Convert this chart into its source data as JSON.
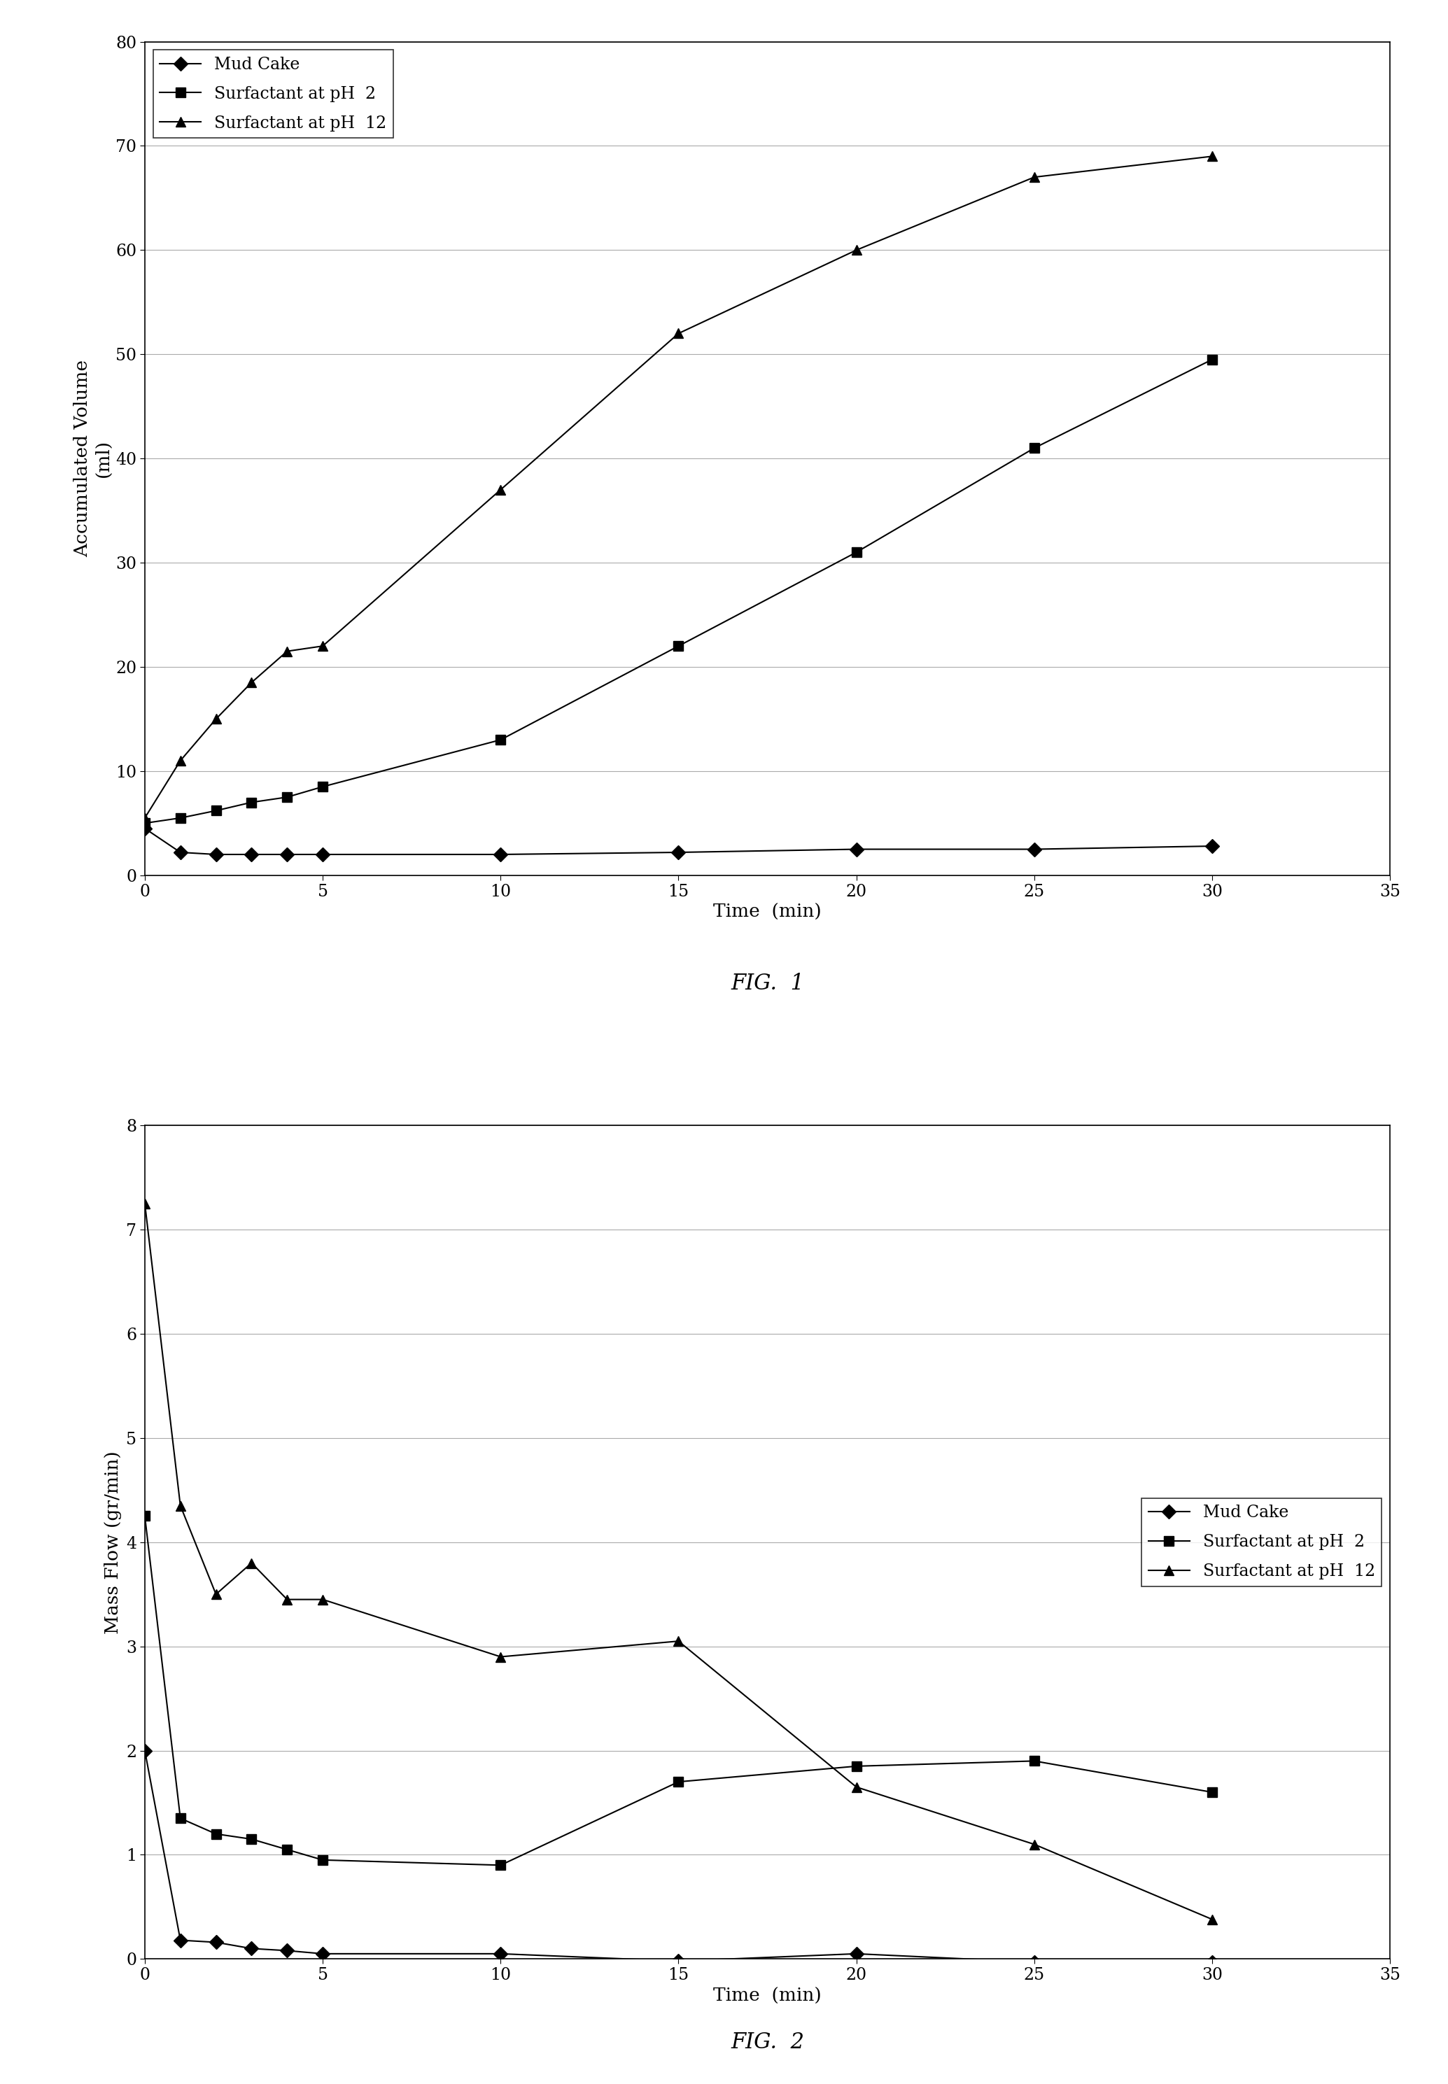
{
  "fig1": {
    "title": "FIG.  1",
    "xlabel": "Time  (min)",
    "ylabel": "Accumulated Volume\n(ml)",
    "xlim": [
      0,
      35
    ],
    "ylim": [
      0,
      80
    ],
    "xticks": [
      0,
      5,
      10,
      15,
      20,
      25,
      30,
      35
    ],
    "yticks": [
      0,
      10,
      20,
      30,
      40,
      50,
      60,
      70,
      80
    ],
    "legend_loc": "upper left",
    "legend_bbox": null,
    "mud_cake": {
      "x": [
        0,
        1,
        2,
        3,
        4,
        5,
        10,
        15,
        20,
        25,
        30
      ],
      "y": [
        4.5,
        2.2,
        2.0,
        2.0,
        2.0,
        2.0,
        2.0,
        2.2,
        2.5,
        2.5,
        2.8
      ],
      "label": "Mud Cake",
      "marker": "D"
    },
    "ph2": {
      "x": [
        0,
        1,
        2,
        3,
        4,
        5,
        10,
        15,
        20,
        25,
        30
      ],
      "y": [
        5.0,
        5.5,
        6.2,
        7.0,
        7.5,
        8.5,
        13.0,
        22.0,
        31.0,
        41.0,
        49.5
      ],
      "label": "Surfactant at pH  2",
      "marker": "s"
    },
    "ph12": {
      "x": [
        0,
        1,
        2,
        3,
        4,
        5,
        10,
        15,
        20,
        25,
        30
      ],
      "y": [
        5.5,
        11.0,
        15.0,
        18.5,
        21.5,
        22.0,
        37.0,
        52.0,
        60.0,
        67.0,
        69.0
      ],
      "label": "Surfactant at pH  12",
      "marker": "^"
    }
  },
  "fig2": {
    "title": "FIG.  2",
    "xlabel": "Time  (min)",
    "ylabel": "Mass Flow (gr/min)",
    "xlim": [
      0,
      35
    ],
    "ylim": [
      0,
      8
    ],
    "xticks": [
      0,
      5,
      10,
      15,
      20,
      25,
      30,
      35
    ],
    "yticks": [
      0,
      1,
      2,
      3,
      4,
      5,
      6,
      7,
      8
    ],
    "legend_loc": "center right",
    "legend_bbox": null,
    "mud_cake": {
      "x": [
        0,
        1,
        2,
        3,
        4,
        5,
        10,
        15,
        20,
        25,
        30
      ],
      "y": [
        2.0,
        0.18,
        0.16,
        0.1,
        0.08,
        0.05,
        0.05,
        -0.02,
        0.05,
        -0.03,
        -0.03
      ],
      "label": "Mud Cake",
      "marker": "D"
    },
    "ph2": {
      "x": [
        0,
        1,
        2,
        3,
        4,
        5,
        10,
        15,
        20,
        25,
        30
      ],
      "y": [
        4.25,
        1.35,
        1.2,
        1.15,
        1.05,
        0.95,
        0.9,
        1.7,
        1.85,
        1.9,
        1.6
      ],
      "label": "Surfactant at pH  2",
      "marker": "s"
    },
    "ph12": {
      "x": [
        0,
        1,
        2,
        3,
        4,
        5,
        10,
        15,
        20,
        25,
        30
      ],
      "y": [
        7.25,
        4.35,
        3.5,
        3.8,
        3.45,
        3.45,
        2.9,
        3.05,
        1.65,
        1.1,
        0.38
      ],
      "label": "Surfactant at pH  12",
      "marker": "^"
    }
  },
  "background_color": "#ffffff",
  "line_color": "black",
  "marker_size": 10,
  "linewidth": 1.5,
  "legend_fontsize": 17,
  "axis_label_fontsize": 19,
  "tick_fontsize": 17,
  "fig_title_fontsize": 22,
  "grid_color": "#aaaaaa",
  "grid_linewidth": 0.8
}
